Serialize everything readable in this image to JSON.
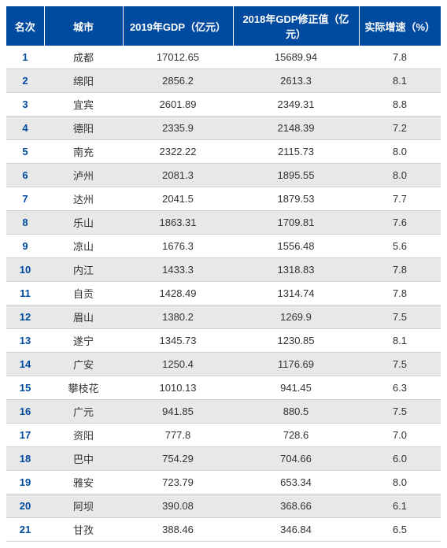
{
  "table": {
    "header_bg": "#004a9f",
    "header_color": "#ffffff",
    "row_odd_bg": "#ffffff",
    "row_even_bg": "#e8e8e8",
    "rank_color": "#004a9f",
    "columns": [
      "名次",
      "城市",
      "2019年GDP（亿元）",
      "2018年GDP修正值（亿元）",
      "实际增速（%）"
    ],
    "rows": [
      {
        "rank": "1",
        "city": "成都",
        "gdp2019": "17012.65",
        "gdp2018": "15689.94",
        "growth": "7.8"
      },
      {
        "rank": "2",
        "city": "绵阳",
        "gdp2019": "2856.2",
        "gdp2018": "2613.3",
        "growth": "8.1"
      },
      {
        "rank": "3",
        "city": "宜宾",
        "gdp2019": "2601.89",
        "gdp2018": "2349.31",
        "growth": "8.8"
      },
      {
        "rank": "4",
        "city": "德阳",
        "gdp2019": "2335.9",
        "gdp2018": "2148.39",
        "growth": "7.2"
      },
      {
        "rank": "5",
        "city": "南充",
        "gdp2019": "2322.22",
        "gdp2018": "2115.73",
        "growth": "8.0"
      },
      {
        "rank": "6",
        "city": "泸州",
        "gdp2019": "2081.3",
        "gdp2018": "1895.55",
        "growth": "8.0"
      },
      {
        "rank": "7",
        "city": "达州",
        "gdp2019": "2041.5",
        "gdp2018": "1879.53",
        "growth": "7.7"
      },
      {
        "rank": "8",
        "city": "乐山",
        "gdp2019": "1863.31",
        "gdp2018": "1709.81",
        "growth": "7.6"
      },
      {
        "rank": "9",
        "city": "凉山",
        "gdp2019": "1676.3",
        "gdp2018": "1556.48",
        "growth": "5.6"
      },
      {
        "rank": "10",
        "city": "内江",
        "gdp2019": "1433.3",
        "gdp2018": "1318.83",
        "growth": "7.8"
      },
      {
        "rank": "11",
        "city": "自贡",
        "gdp2019": "1428.49",
        "gdp2018": "1314.74",
        "growth": "7.8"
      },
      {
        "rank": "12",
        "city": "眉山",
        "gdp2019": "1380.2",
        "gdp2018": "1269.9",
        "growth": "7.5"
      },
      {
        "rank": "13",
        "city": "遂宁",
        "gdp2019": "1345.73",
        "gdp2018": "1230.85",
        "growth": "8.1"
      },
      {
        "rank": "14",
        "city": "广安",
        "gdp2019": "1250.4",
        "gdp2018": "1176.69",
        "growth": "7.5"
      },
      {
        "rank": "15",
        "city": "攀枝花",
        "gdp2019": "1010.13",
        "gdp2018": "941.45",
        "growth": "6.3"
      },
      {
        "rank": "16",
        "city": "广元",
        "gdp2019": "941.85",
        "gdp2018": "880.5",
        "growth": "7.5"
      },
      {
        "rank": "17",
        "city": "资阳",
        "gdp2019": "777.8",
        "gdp2018": "728.6",
        "growth": "7.0"
      },
      {
        "rank": "18",
        "city": "巴中",
        "gdp2019": "754.29",
        "gdp2018": "704.66",
        "growth": "6.0"
      },
      {
        "rank": "19",
        "city": "雅安",
        "gdp2019": "723.79",
        "gdp2018": "653.34",
        "growth": "8.0"
      },
      {
        "rank": "20",
        "city": "阿坝",
        "gdp2019": "390.08",
        "gdp2018": "368.66",
        "growth": "6.1"
      },
      {
        "rank": "21",
        "city": "甘孜",
        "gdp2019": "388.46",
        "gdp2018": "346.84",
        "growth": "6.5"
      }
    ]
  }
}
